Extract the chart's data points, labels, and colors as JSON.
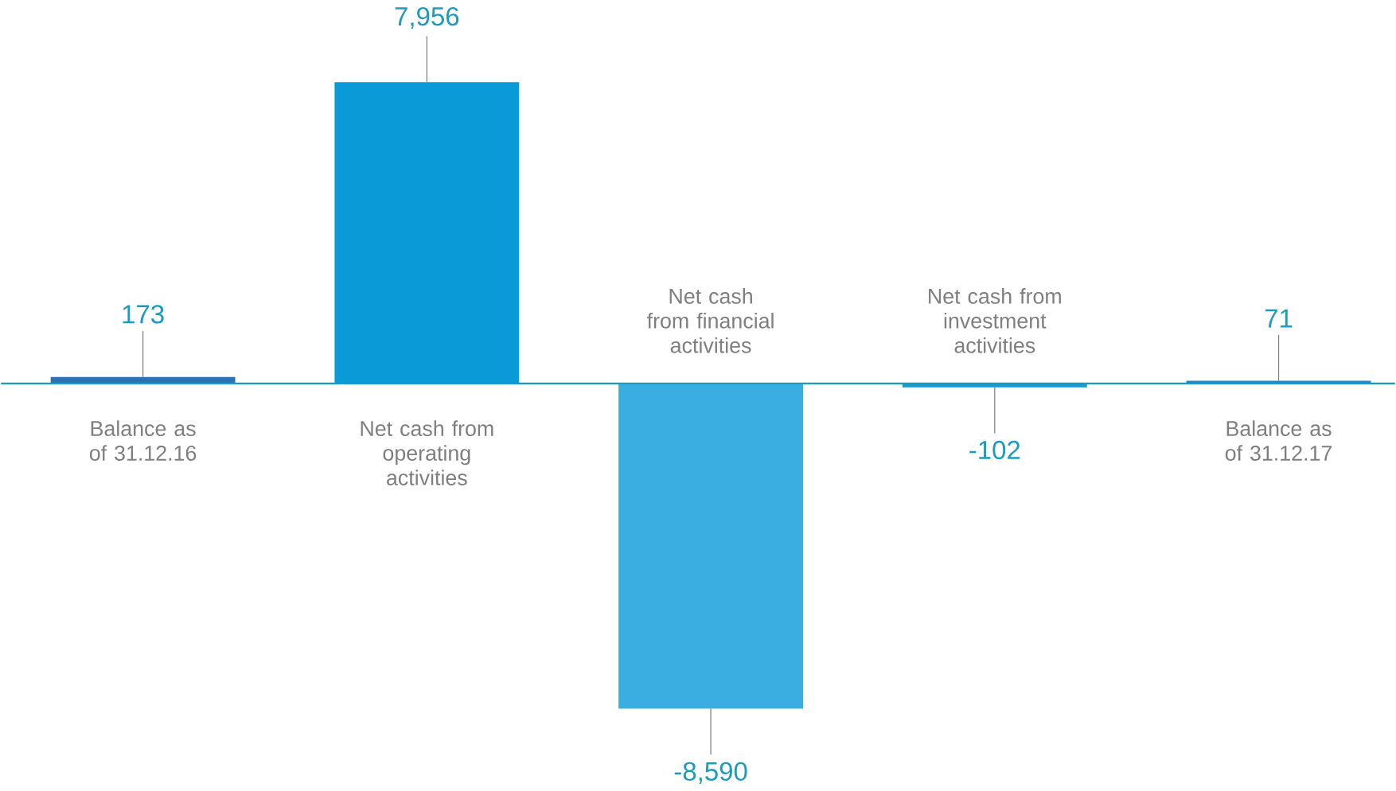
{
  "chart_data": {
    "type": "bar",
    "categories": [
      "Balance as of 31.12.16",
      "Net cash from operating activities",
      "Net cash from financial activities",
      "Net cash from investment activities",
      "Balance as of 31.12.17"
    ],
    "values": [
      173,
      7956,
      -8590,
      -102,
      71
    ],
    "value_labels": [
      "173",
      "7,956",
      "-8,590",
      "-102",
      "71"
    ],
    "colors": [
      "#2a72b8",
      "#0a9ad8",
      "#3aaee0",
      "#1a9ad0",
      "#1a86c8"
    ]
  }
}
